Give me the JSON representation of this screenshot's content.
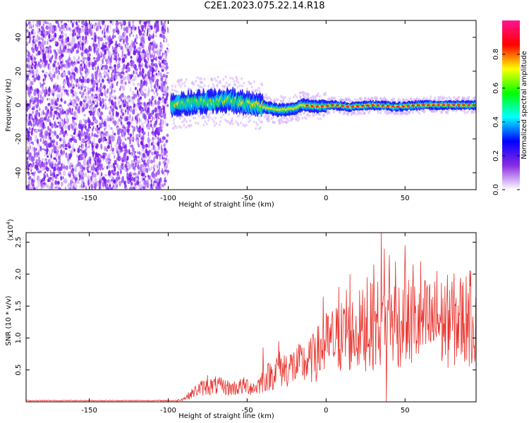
{
  "title": "C2E1.2023.075.22.14.R18",
  "chart_data": [
    {
      "type": "heatmap",
      "xlabel": "Height of straight line (km)",
      "ylabel": "Frequency (Hz)",
      "xlim": [
        -190,
        95
      ],
      "ylim": [
        -50,
        50
      ],
      "x_ticks": [
        -150,
        -100,
        -50,
        0,
        50
      ],
      "y_ticks": [
        -40,
        -20,
        0,
        20,
        40
      ],
      "colorbar": {
        "label": "Normalized spectral amplitude",
        "range": [
          0,
          1
        ],
        "ticks": [
          "0.0",
          "0.2",
          "0.4",
          "0.6",
          "0.8"
        ],
        "colors": [
          "#ffffff",
          "#8a2be2",
          "#0000ff",
          "#00ffff",
          "#00ff00",
          "#ffff00",
          "#ff0000",
          "#ff1493"
        ]
      },
      "noise_region_x": [
        -190,
        -100
      ],
      "ridge": [
        {
          "x": -98,
          "freq": 0,
          "amp": 0.45
        },
        {
          "x": -90,
          "freq": 1,
          "amp": 0.5
        },
        {
          "x": -80,
          "freq": 2,
          "amp": 0.5
        },
        {
          "x": -70,
          "freq": 2,
          "amp": 0.5
        },
        {
          "x": -60,
          "freq": 3,
          "amp": 0.55
        },
        {
          "x": -50,
          "freq": 1,
          "amp": 0.6
        },
        {
          "x": -40,
          "freq": -1,
          "amp": 0.6
        },
        {
          "x": -30,
          "freq": -3,
          "amp": 0.6
        },
        {
          "x": -20,
          "freq": -2,
          "amp": 0.65
        },
        {
          "x": -15,
          "freq": 0,
          "amp": 0.75
        },
        {
          "x": -5,
          "freq": -1,
          "amp": 0.8
        },
        {
          "x": 5,
          "freq": 0,
          "amp": 0.8
        },
        {
          "x": 15,
          "freq": -1,
          "amp": 0.85
        },
        {
          "x": 30,
          "freq": 0,
          "amp": 0.85
        },
        {
          "x": 45,
          "freq": -1,
          "amp": 0.85
        },
        {
          "x": 60,
          "freq": 0,
          "amp": 0.9
        },
        {
          "x": 75,
          "freq": 0,
          "amp": 0.9
        },
        {
          "x": 90,
          "freq": 0,
          "amp": 0.9
        }
      ]
    },
    {
      "type": "line",
      "xlabel": "Height of straight line (km)",
      "ylabel": "SNR (10 * v/v)",
      "y_multiplier": "(x10^4)",
      "xlim": [
        -190,
        95
      ],
      "ylim": [
        0,
        26500
      ],
      "x_ticks": [
        -150,
        -100,
        -50,
        0,
        50
      ],
      "y_ticks": [
        5000,
        10000,
        15000,
        20000,
        25000
      ],
      "y_tick_labels": [
        "0.5",
        "1.0",
        "1.5",
        "2.0",
        "2.5"
      ],
      "line_color": "#e8302a",
      "envelope": {
        "x": [
          -190,
          -95,
          -90,
          -80,
          -70,
          -60,
          -50,
          -45,
          -40,
          -30,
          -20,
          -10,
          0,
          10,
          20,
          30,
          35,
          40,
          50,
          60,
          70,
          80,
          95
        ],
        "y": [
          200,
          200,
          600,
          2500,
          3000,
          2500,
          3000,
          2500,
          4000,
          6000,
          6500,
          7500,
          10500,
          12000,
          13000,
          14000,
          15000,
          15000,
          14500,
          14500,
          14500,
          15000,
          15500
        ]
      },
      "spikes": [
        {
          "x": -75,
          "y": 4200
        },
        {
          "x": -40,
          "y": 8500
        },
        {
          "x": -30,
          "y": 9500
        },
        {
          "x": -8,
          "y": 10000
        },
        {
          "x": -7,
          "y": 10000
        },
        {
          "x": -2,
          "y": 16500
        },
        {
          "x": 8,
          "y": 18000
        },
        {
          "x": 13,
          "y": 17500
        },
        {
          "x": 15,
          "y": 20000
        },
        {
          "x": 26,
          "y": 19500
        },
        {
          "x": 30,
          "y": 21500
        },
        {
          "x": 35,
          "y": 26500
        },
        {
          "x": 37,
          "y": 24000
        },
        {
          "x": 40,
          "y": 23000
        },
        {
          "x": 44,
          "y": 22000
        },
        {
          "x": 50,
          "y": 24500
        },
        {
          "x": 55,
          "y": 21500
        },
        {
          "x": 60,
          "y": 22000
        },
        {
          "x": 70,
          "y": 20500
        },
        {
          "x": 78,
          "y": 17500
        },
        {
          "x": 90,
          "y": 17000
        },
        {
          "x": 38,
          "y": 0
        }
      ]
    }
  ]
}
